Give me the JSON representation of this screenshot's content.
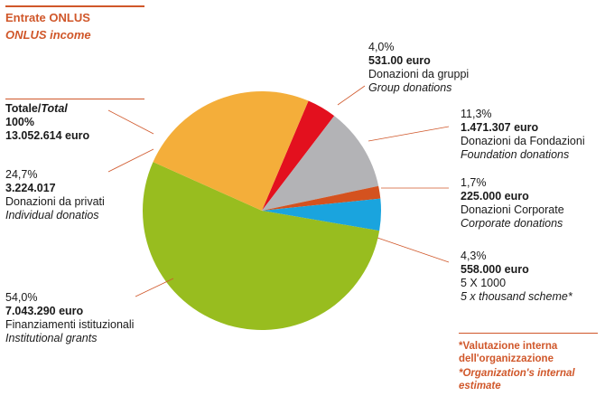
{
  "header": {
    "title": "Entrate ONLUS",
    "subtitle": "ONLUS income"
  },
  "total": {
    "label_it": "Totale/",
    "label_en": "Total",
    "percent": "100%",
    "amount": "13.052.614 euro"
  },
  "footnote": {
    "line_it_1": "*Valutazione interna",
    "line_it_2": "dell'organizzazione",
    "line_en_1": "*Organization's internal",
    "line_en_2": "estimate"
  },
  "chart_data": {
    "type": "pie",
    "title": "Entrate ONLUS",
    "subtitle": "ONLUS income",
    "slices": [
      {
        "percent_label": "4,0%",
        "amount": "531.00 euro",
        "label_it": "Donazioni da gruppi",
        "label_en": "Group donations",
        "value": 4.0,
        "color": "#e3101e"
      },
      {
        "percent_label": "11,3%",
        "amount": "1.471.307 euro",
        "label_it": "Donazioni da Fondazioni",
        "label_en": "Foundation donations",
        "value": 11.3,
        "color": "#b3b3b6"
      },
      {
        "percent_label": "1,7%",
        "amount": "225.000 euro",
        "label_it": "Donazioni Corporate",
        "label_en": "Corporate donations",
        "value": 1.7,
        "color": "#d4521f"
      },
      {
        "percent_label": "4,3%",
        "amount": "558.000 euro",
        "label_it": "5 X 1000",
        "label_en": "5 x thousand scheme*",
        "value": 4.3,
        "color": "#1aa4de"
      },
      {
        "percent_label": "54,0%",
        "amount": "7.043.290 euro",
        "label_it": "Finanziamenti istituzionali",
        "label_en": "Institutional grants",
        "value": 54.0,
        "color": "#98bd1f"
      },
      {
        "percent_label": "24,7%",
        "amount": "3.224.017",
        "label_it": "Donazioni da privati",
        "label_en": "Individual donatios",
        "value": 24.7,
        "color": "#f4ae3a"
      }
    ]
  }
}
